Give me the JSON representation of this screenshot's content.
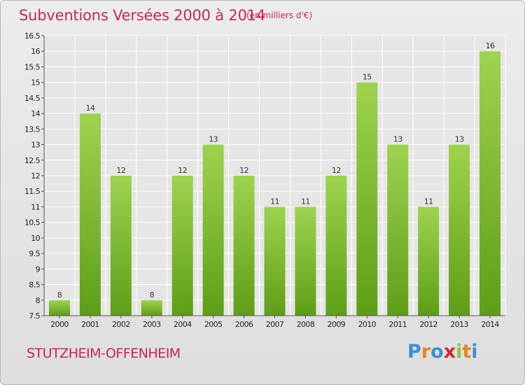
{
  "header": {
    "title": "Subventions Versées 2000 à 2014",
    "subtitle": "(en milliers d'€)"
  },
  "footer": {
    "commune": "STUTZHEIM-OFFENHEIM",
    "logo": "Proxiti"
  },
  "colors": {
    "title": "#c8245f",
    "bar_top": "#9ed34f",
    "bar_bottom": "#5e9e16",
    "logo_letters": [
      "#3a8fd4",
      "#e8831f",
      "#3a8fd4",
      "#d9242c",
      "#8cc63f",
      "#e8831f",
      "#3a8fd4"
    ]
  },
  "chart_data": {
    "type": "bar",
    "title": "Subventions Versées 2000 à 2014",
    "categories": [
      "2000",
      "2001",
      "2002",
      "2003",
      "2004",
      "2005",
      "2006",
      "2007",
      "2008",
      "2009",
      "2010",
      "2011",
      "2012",
      "2013",
      "2014"
    ],
    "values": [
      8,
      14,
      12,
      8,
      12,
      13,
      12,
      11,
      11,
      12,
      15,
      13,
      11,
      13,
      16
    ],
    "value_labels": [
      "8",
      "14",
      "12",
      "8",
      "12",
      "13",
      "12",
      "11",
      "11",
      "12",
      "15",
      "13",
      "11",
      "13",
      "16"
    ],
    "y_ticks": [
      7.5,
      8,
      8.5,
      9,
      9.5,
      10,
      10.5,
      11,
      11.5,
      12,
      12.5,
      13,
      13.5,
      14,
      14.5,
      15,
      15.5,
      16,
      16.5
    ],
    "y_tick_labels": [
      "7.5",
      "8",
      "8.5",
      "9",
      "9.5",
      "10",
      "10.5",
      "11",
      "11.5",
      "12",
      "12.5",
      "13",
      "13.5",
      "14",
      "14.5",
      "15",
      "15.5",
      "16",
      "16.5"
    ],
    "ylim": [
      7.5,
      16.5
    ],
    "grid": true,
    "legend": "none"
  }
}
